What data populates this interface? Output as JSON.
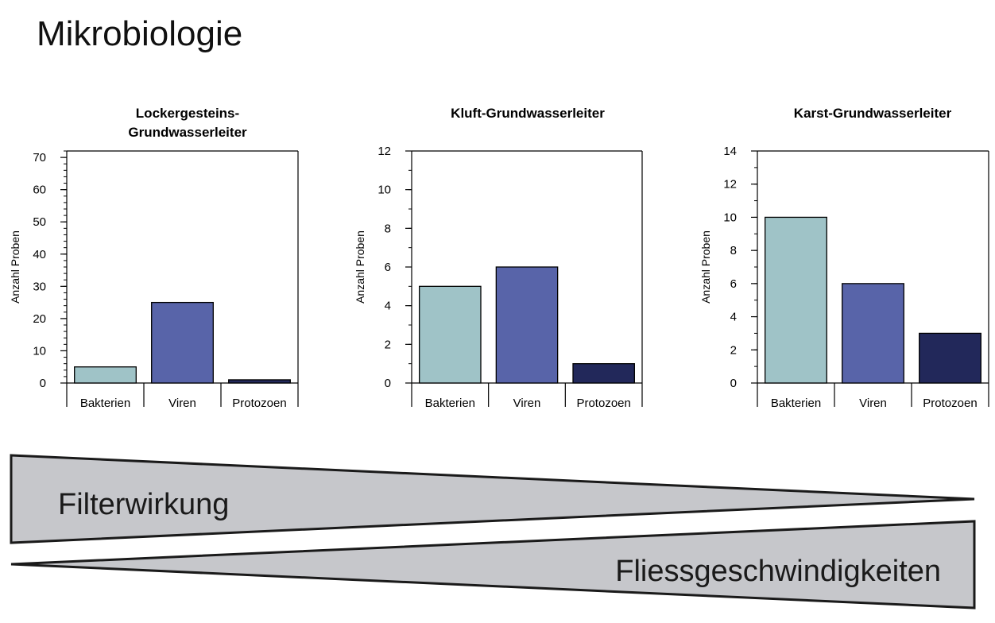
{
  "page": {
    "title": "Mikrobiologie"
  },
  "colors": {
    "bakterien": "#9fc3c7",
    "viren": "#5864a9",
    "protozoen": "#22285a",
    "wedge_fill": "#c6c7cb",
    "wedge_stroke": "#1a1a1a"
  },
  "chart_data": [
    {
      "type": "bar",
      "title": [
        "Lockergesteins-",
        "Grundwasserleiter"
      ],
      "categories": [
        "Bakterien",
        "Viren",
        "Protozoen"
      ],
      "values": [
        5,
        25,
        1
      ],
      "ylabel": "Anzahl Proben",
      "ylim": [
        0,
        72
      ],
      "yticks": [
        0,
        10,
        20,
        30,
        40,
        50,
        60,
        70
      ],
      "minor_step": 2,
      "grid": false
    },
    {
      "type": "bar",
      "title": [
        "Kluft-Grundwasserleiter"
      ],
      "categories": [
        "Bakterien",
        "Viren",
        "Protozoen"
      ],
      "values": [
        5,
        6,
        1
      ],
      "ylabel": "Anzahl Proben",
      "ylim": [
        0,
        12
      ],
      "yticks": [
        0,
        2,
        4,
        6,
        8,
        10,
        12
      ],
      "minor_step": 1,
      "grid": false
    },
    {
      "type": "bar",
      "title": [
        "Karst-Grundwasserleiter"
      ],
      "categories": [
        "Bakterien",
        "Viren",
        "Protozoen"
      ],
      "values": [
        10,
        6,
        3
      ],
      "ylabel": "Anzahl Proben",
      "ylim": [
        0,
        14
      ],
      "yticks": [
        0,
        2,
        4,
        6,
        8,
        10,
        12,
        14
      ],
      "minor_step": 1,
      "grid": false
    }
  ],
  "wedges": {
    "top_label": "Filterwirkung",
    "bottom_label": "Fliessgeschwindigkeiten"
  }
}
